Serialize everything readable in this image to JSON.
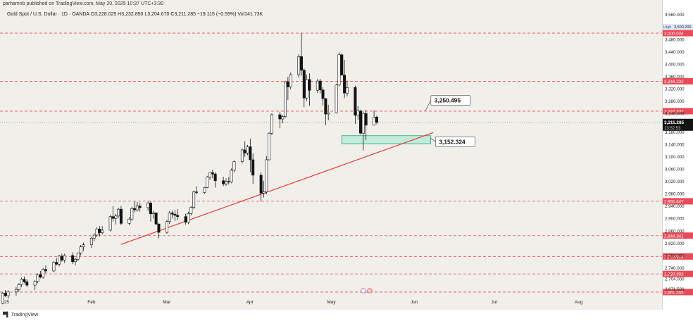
{
  "header": {
    "publisher_line": "parhamnb published on TradingView.com, May 20, 2025 10:37 UTC+3:30",
    "symbol": "Gold Spot / U.S. Dollar · 1D · OANDA",
    "ohlc": "O3,228.025  H3,232.850  L3,204.670  C3,211.285  −19.115 (−0.59%)  Vol141.73K"
  },
  "footer": {
    "brand": "TradingView"
  },
  "price_axis": {
    "ticks": [
      "3,560.000",
      "3,520.000",
      "3,480.000",
      "3,440.000",
      "3,400.000",
      "3,360.000",
      "3,320.000",
      "3,280.000",
      "3,240.000",
      "3,180.000",
      "3,140.000",
      "3,100.000",
      "3,060.000",
      "3,020.000",
      "2,980.000",
      "2,940.000",
      "2,900.000",
      "2,860.000",
      "2,820.000",
      "2,780.000",
      "2,740.000",
      "2,704.000",
      "2,671.500"
    ],
    "tick_values": [
      3560,
      3520,
      3480,
      3440,
      3400,
      3360,
      3320,
      3280,
      3240,
      3180,
      3140,
      3100,
      3060,
      3020,
      2980,
      2940,
      2900,
      2860,
      2820,
      2780,
      2740,
      2704,
      2671.5
    ],
    "high_label": "High",
    "high_value": "3,500.200",
    "current_price": "3,211.285",
    "countdown": "13:52:53"
  },
  "time_axis": {
    "labels": [
      "25",
      "Feb",
      "Mar",
      "Apr",
      "May",
      "Jun",
      "Jul",
      "Aug"
    ],
    "dates": [
      "2025-01-01",
      "2025-02-01",
      "2025-03-01",
      "2025-04-01",
      "2025-05-01",
      "2025-06-01",
      "2025-07-01",
      "2025-08-01"
    ]
  },
  "levels": [
    {
      "value": 3500.034,
      "label": "3,500.034"
    },
    {
      "value": 3344.232,
      "label": "3,344.232"
    },
    {
      "value": 3247.337,
      "label": "3,247.337"
    },
    {
      "value": 2955.647,
      "label": "2,955.647"
    },
    {
      "value": 2844.341,
      "label": "2,844.341"
    },
    {
      "value": 2776.914,
      "label": "2,776.914"
    },
    {
      "value": 2720.393,
      "label": "2,720.393"
    },
    {
      "value": 2661.555,
      "label": "2,661.555"
    }
  ],
  "annotations": {
    "upper_box": "3,250.495",
    "lower_box": "3,152.324"
  },
  "colors": {
    "up": "#ffffff",
    "down": "#131313",
    "level": "#e84a56",
    "trend": "#e53935",
    "zone_fill": "#b9ead7",
    "zone_stroke": "#26a07a",
    "price_label_bg": "#131313"
  },
  "chart_data": {
    "type": "candlestick",
    "title": "Gold Spot / U.S. Dollar · 1D · OANDA",
    "xlabel": "",
    "ylabel": "",
    "ylim": [
      2650,
      3580
    ],
    "x_range": [
      "2024-12-31",
      "2025-09-03"
    ],
    "candles": [
      {
        "date": "2025-01-01",
        "o": 2625,
        "h": 2662,
        "l": 2622,
        "c": 2658
      },
      {
        "date": "2025-01-02",
        "o": 2658,
        "h": 2668,
        "l": 2645,
        "c": 2650
      },
      {
        "date": "2025-01-03",
        "o": 2650,
        "h": 2668,
        "l": 2640,
        "c": 2662
      },
      {
        "date": "2025-01-06",
        "o": 2662,
        "h": 2678,
        "l": 2650,
        "c": 2670
      },
      {
        "date": "2025-01-07",
        "o": 2670,
        "h": 2690,
        "l": 2662,
        "c": 2686
      },
      {
        "date": "2025-01-08",
        "o": 2686,
        "h": 2708,
        "l": 2678,
        "c": 2703
      },
      {
        "date": "2025-01-09",
        "o": 2703,
        "h": 2712,
        "l": 2690,
        "c": 2695
      },
      {
        "date": "2025-01-10",
        "o": 2695,
        "h": 2702,
        "l": 2678,
        "c": 2684
      },
      {
        "date": "2025-01-13",
        "o": 2684,
        "h": 2700,
        "l": 2668,
        "c": 2696
      },
      {
        "date": "2025-01-14",
        "o": 2696,
        "h": 2722,
        "l": 2690,
        "c": 2718
      },
      {
        "date": "2025-01-15",
        "o": 2718,
        "h": 2730,
        "l": 2706,
        "c": 2710
      },
      {
        "date": "2025-01-16",
        "o": 2710,
        "h": 2740,
        "l": 2705,
        "c": 2735
      },
      {
        "date": "2025-01-17",
        "o": 2735,
        "h": 2748,
        "l": 2722,
        "c": 2730
      },
      {
        "date": "2025-01-20",
        "o": 2730,
        "h": 2762,
        "l": 2726,
        "c": 2758
      },
      {
        "date": "2025-01-21",
        "o": 2758,
        "h": 2772,
        "l": 2748,
        "c": 2752
      },
      {
        "date": "2025-01-22",
        "o": 2752,
        "h": 2782,
        "l": 2745,
        "c": 2778
      },
      {
        "date": "2025-01-23",
        "o": 2778,
        "h": 2786,
        "l": 2760,
        "c": 2765
      },
      {
        "date": "2025-01-24",
        "o": 2765,
        "h": 2786,
        "l": 2756,
        "c": 2780
      },
      {
        "date": "2025-01-27",
        "o": 2780,
        "h": 2790,
        "l": 2752,
        "c": 2760
      },
      {
        "date": "2025-01-28",
        "o": 2760,
        "h": 2772,
        "l": 2748,
        "c": 2768
      },
      {
        "date": "2025-01-29",
        "o": 2768,
        "h": 2790,
        "l": 2762,
        "c": 2788
      },
      {
        "date": "2025-01-30",
        "o": 2788,
        "h": 2814,
        "l": 2780,
        "c": 2808
      },
      {
        "date": "2025-01-31",
        "o": 2808,
        "h": 2822,
        "l": 2795,
        "c": 2815
      },
      {
        "date": "2025-02-03",
        "o": 2815,
        "h": 2840,
        "l": 2805,
        "c": 2836
      },
      {
        "date": "2025-02-04",
        "o": 2836,
        "h": 2852,
        "l": 2826,
        "c": 2846
      },
      {
        "date": "2025-02-05",
        "o": 2846,
        "h": 2872,
        "l": 2840,
        "c": 2866
      },
      {
        "date": "2025-02-06",
        "o": 2866,
        "h": 2875,
        "l": 2842,
        "c": 2854
      },
      {
        "date": "2025-02-07",
        "o": 2854,
        "h": 2875,
        "l": 2848,
        "c": 2862
      },
      {
        "date": "2025-02-10",
        "o": 2862,
        "h": 2912,
        "l": 2858,
        "c": 2906
      },
      {
        "date": "2025-02-11",
        "o": 2906,
        "h": 2940,
        "l": 2890,
        "c": 2900
      },
      {
        "date": "2025-02-12",
        "o": 2900,
        "h": 2915,
        "l": 2880,
        "c": 2908
      },
      {
        "date": "2025-02-13",
        "o": 2908,
        "h": 2935,
        "l": 2902,
        "c": 2930
      },
      {
        "date": "2025-02-14",
        "o": 2930,
        "h": 2940,
        "l": 2878,
        "c": 2884
      },
      {
        "date": "2025-02-17",
        "o": 2884,
        "h": 2905,
        "l": 2878,
        "c": 2898
      },
      {
        "date": "2025-02-18",
        "o": 2898,
        "h": 2938,
        "l": 2892,
        "c": 2932
      },
      {
        "date": "2025-02-19",
        "o": 2932,
        "h": 2955,
        "l": 2920,
        "c": 2928
      },
      {
        "date": "2025-02-20",
        "o": 2928,
        "h": 2954,
        "l": 2922,
        "c": 2940
      },
      {
        "date": "2025-02-21",
        "o": 2940,
        "h": 2950,
        "l": 2922,
        "c": 2935
      },
      {
        "date": "2025-02-24",
        "o": 2935,
        "h": 2956,
        "l": 2925,
        "c": 2950
      },
      {
        "date": "2025-02-25",
        "o": 2950,
        "h": 2955,
        "l": 2890,
        "c": 2915
      },
      {
        "date": "2025-02-26",
        "o": 2915,
        "h": 2925,
        "l": 2900,
        "c": 2918
      },
      {
        "date": "2025-02-27",
        "o": 2918,
        "h": 2920,
        "l": 2878,
        "c": 2882
      },
      {
        "date": "2025-02-28",
        "o": 2882,
        "h": 2885,
        "l": 2835,
        "c": 2855
      },
      {
        "date": "2025-03-03",
        "o": 2855,
        "h": 2895,
        "l": 2850,
        "c": 2890
      },
      {
        "date": "2025-03-04",
        "o": 2890,
        "h": 2924,
        "l": 2882,
        "c": 2918
      },
      {
        "date": "2025-03-05",
        "o": 2918,
        "h": 2925,
        "l": 2900,
        "c": 2914
      },
      {
        "date": "2025-03-06",
        "o": 2914,
        "h": 2928,
        "l": 2892,
        "c": 2910
      },
      {
        "date": "2025-03-07",
        "o": 2910,
        "h": 2930,
        "l": 2895,
        "c": 2906
      },
      {
        "date": "2025-03-10",
        "o": 2906,
        "h": 2915,
        "l": 2880,
        "c": 2888
      },
      {
        "date": "2025-03-11",
        "o": 2888,
        "h": 2922,
        "l": 2882,
        "c": 2916
      },
      {
        "date": "2025-03-12",
        "o": 2916,
        "h": 2940,
        "l": 2910,
        "c": 2936
      },
      {
        "date": "2025-03-13",
        "o": 2936,
        "h": 2990,
        "l": 2930,
        "c": 2986
      },
      {
        "date": "2025-03-14",
        "o": 2986,
        "h": 3004,
        "l": 2978,
        "c": 2984
      },
      {
        "date": "2025-03-17",
        "o": 2984,
        "h": 3002,
        "l": 2980,
        "c": 3000
      },
      {
        "date": "2025-03-18",
        "o": 3000,
        "h": 3038,
        "l": 2998,
        "c": 3034
      },
      {
        "date": "2025-03-19",
        "o": 3034,
        "h": 3046,
        "l": 3025,
        "c": 3048
      },
      {
        "date": "2025-03-20",
        "o": 3048,
        "h": 3058,
        "l": 3030,
        "c": 3044
      },
      {
        "date": "2025-03-21",
        "o": 3044,
        "h": 3050,
        "l": 3000,
        "c": 3022
      },
      {
        "date": "2025-03-24",
        "o": 3022,
        "h": 3035,
        "l": 3005,
        "c": 3012
      },
      {
        "date": "2025-03-25",
        "o": 3012,
        "h": 3030,
        "l": 3006,
        "c": 3020
      },
      {
        "date": "2025-03-26",
        "o": 3020,
        "h": 3034,
        "l": 3010,
        "c": 3018
      },
      {
        "date": "2025-03-27",
        "o": 3018,
        "h": 3062,
        "l": 3014,
        "c": 3056
      },
      {
        "date": "2025-03-28",
        "o": 3056,
        "h": 3088,
        "l": 3050,
        "c": 3084
      },
      {
        "date": "2025-03-31",
        "o": 3084,
        "h": 3126,
        "l": 3078,
        "c": 3122
      },
      {
        "date": "2025-04-01",
        "o": 3122,
        "h": 3150,
        "l": 3100,
        "c": 3112
      },
      {
        "date": "2025-04-02",
        "o": 3112,
        "h": 3138,
        "l": 3105,
        "c": 3132
      },
      {
        "date": "2025-04-03",
        "o": 3132,
        "h": 3158,
        "l": 3050,
        "c": 3090
      },
      {
        "date": "2025-04-04",
        "o": 3090,
        "h": 3110,
        "l": 3012,
        "c": 3040
      },
      {
        "date": "2025-04-07",
        "o": 3040,
        "h": 3050,
        "l": 2955,
        "c": 2982
      },
      {
        "date": "2025-04-08",
        "o": 2982,
        "h": 3022,
        "l": 2968,
        "c": 2986
      },
      {
        "date": "2025-04-09",
        "o": 2986,
        "h": 3102,
        "l": 2978,
        "c": 3090
      },
      {
        "date": "2025-04-10",
        "o": 3090,
        "h": 3180,
        "l": 3088,
        "c": 3176
      },
      {
        "date": "2025-04-11",
        "o": 3176,
        "h": 3240,
        "l": 3170,
        "c": 3236
      },
      {
        "date": "2025-04-14",
        "o": 3236,
        "h": 3246,
        "l": 3192,
        "c": 3222
      },
      {
        "date": "2025-04-15",
        "o": 3222,
        "h": 3236,
        "l": 3208,
        "c": 3230
      },
      {
        "date": "2025-04-16",
        "o": 3230,
        "h": 3346,
        "l": 3225,
        "c": 3342
      },
      {
        "date": "2025-04-17",
        "o": 3342,
        "h": 3358,
        "l": 3284,
        "c": 3326
      },
      {
        "date": "2025-04-18",
        "o": 3326,
        "h": 3372,
        "l": 3318,
        "c": 3366
      },
      {
        "date": "2025-04-21",
        "o": 3366,
        "h": 3432,
        "l": 3356,
        "c": 3424
      },
      {
        "date": "2025-04-22",
        "o": 3424,
        "h": 3500,
        "l": 3362,
        "c": 3380
      },
      {
        "date": "2025-04-23",
        "o": 3380,
        "h": 3386,
        "l": 3260,
        "c": 3290
      },
      {
        "date": "2025-04-24",
        "o": 3290,
        "h": 3366,
        "l": 3280,
        "c": 3350
      },
      {
        "date": "2025-04-25",
        "o": 3350,
        "h": 3370,
        "l": 3265,
        "c": 3315
      },
      {
        "date": "2025-04-28",
        "o": 3315,
        "h": 3352,
        "l": 3306,
        "c": 3345
      },
      {
        "date": "2025-04-29",
        "o": 3345,
        "h": 3352,
        "l": 3305,
        "c": 3316
      },
      {
        "date": "2025-04-30",
        "o": 3316,
        "h": 3325,
        "l": 3266,
        "c": 3288
      },
      {
        "date": "2025-05-01",
        "o": 3288,
        "h": 3290,
        "l": 3202,
        "c": 3238
      },
      {
        "date": "2025-05-02",
        "o": 3238,
        "h": 3268,
        "l": 3218,
        "c": 3242
      },
      {
        "date": "2025-05-05",
        "o": 3242,
        "h": 3336,
        "l": 3240,
        "c": 3332
      },
      {
        "date": "2025-05-06",
        "o": 3332,
        "h": 3438,
        "l": 3328,
        "c": 3430
      },
      {
        "date": "2025-05-07",
        "o": 3430,
        "h": 3434,
        "l": 3366,
        "c": 3364
      },
      {
        "date": "2025-05-08",
        "o": 3364,
        "h": 3414,
        "l": 3290,
        "c": 3306
      },
      {
        "date": "2025-05-09",
        "o": 3306,
        "h": 3346,
        "l": 3295,
        "c": 3324
      },
      {
        "date": "2025-05-12",
        "o": 3324,
        "h": 3330,
        "l": 3206,
        "c": 3234
      },
      {
        "date": "2025-05-13",
        "o": 3234,
        "h": 3264,
        "l": 3220,
        "c": 3248
      },
      {
        "date": "2025-05-14",
        "o": 3248,
        "h": 3252,
        "l": 3172,
        "c": 3176
      },
      {
        "date": "2025-05-15",
        "o": 3176,
        "h": 3246,
        "l": 3120,
        "c": 3240
      },
      {
        "date": "2025-05-16",
        "o": 3240,
        "h": 3252,
        "l": 3154,
        "c": 3202
      },
      {
        "date": "2025-05-19",
        "o": 3202,
        "h": 3250,
        "l": 3204,
        "c": 3228
      },
      {
        "date": "2025-05-20",
        "o": 3228.025,
        "h": 3232.85,
        "l": 3204.67,
        "c": 3211.285
      }
    ],
    "trendline": {
      "start": {
        "date": "2025-02-14",
        "price": 2816
      },
      "end": {
        "date": "2025-06-10",
        "price": 3178
      }
    },
    "zone": {
      "start_date": "2025-05-07",
      "end_date": "2025-06-09",
      "top": 3168,
      "bottom": 3142
    },
    "callouts": [
      {
        "name": "upper",
        "text": "3,250.495",
        "anchor_date": "2025-06-07",
        "anchor_price": 3248
      },
      {
        "name": "lower",
        "text": "3,152.324",
        "anchor_date": "2025-06-09",
        "anchor_price": 3160
      }
    ]
  }
}
